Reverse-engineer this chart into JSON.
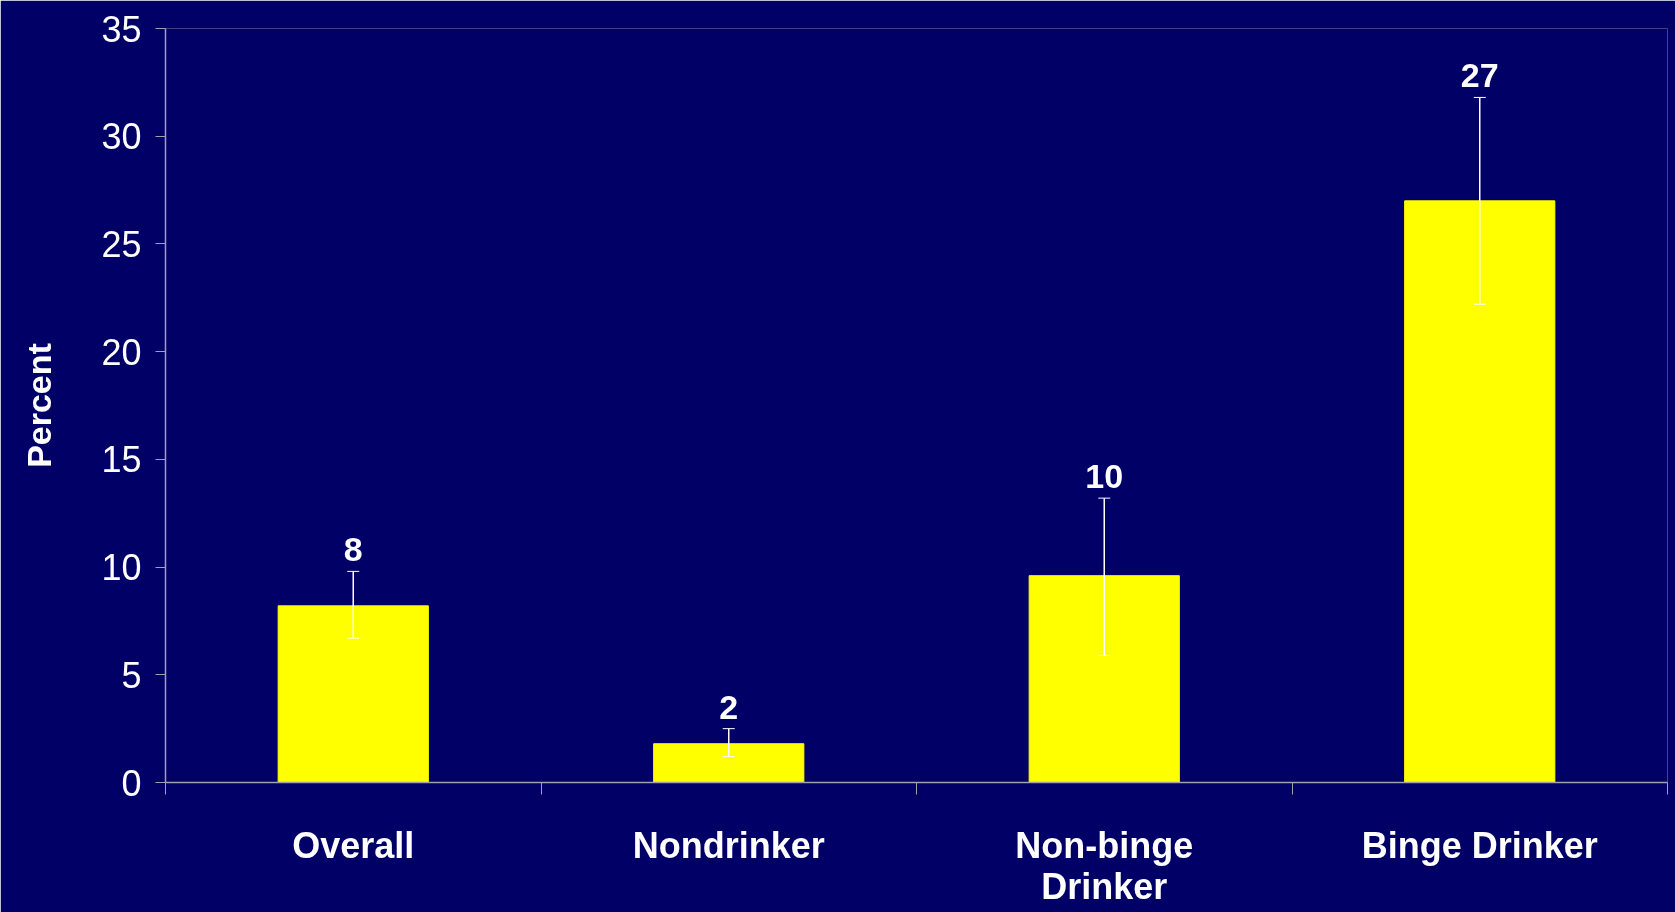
{
  "chart_data": {
    "type": "bar",
    "ylabel": "Percent",
    "categories": [
      "Overall",
      "Nondrinker",
      "Non-binge Drinker",
      "Binge Drinker"
    ],
    "values": [
      8.2,
      1.8,
      9.6,
      27.0
    ],
    "value_labels": [
      "8",
      "2",
      "10",
      "27"
    ],
    "errors": [
      [
        6.7,
        9.8
      ],
      [
        1.2,
        2.5
      ],
      [
        5.9,
        13.2
      ],
      [
        22.2,
        31.8
      ]
    ],
    "color": "#ffff00",
    "ylim": [
      0,
      35
    ],
    "yticks": [
      0,
      5,
      10,
      15,
      20,
      25,
      30,
      35
    ],
    "grid": false
  }
}
